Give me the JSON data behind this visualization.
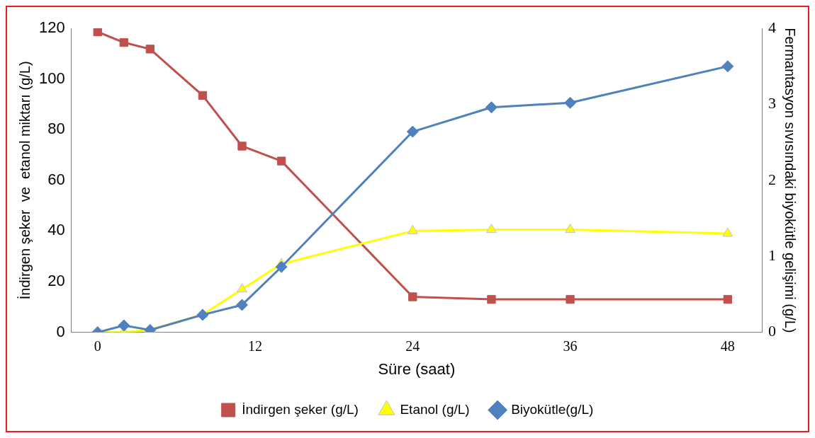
{
  "chart_data": {
    "type": "line",
    "xlabel": "Süre (saat)",
    "ylabel": "İndirgen şeker  ve  etanol miktarı (g/L)",
    "y2label": "Fermantasyon sıvısındaki biyokütle gelişimi (g/L)",
    "x": [
      0,
      2,
      4,
      8,
      11,
      14,
      24,
      30,
      36,
      48
    ],
    "series": [
      {
        "name": "İndirgen şeker (g/L)",
        "color": "#c0504d",
        "marker": "square",
        "values": [
          118.6,
          114.4,
          111.8,
          93.5,
          73.5,
          67.6,
          14,
          13,
          13,
          13
        ]
      },
      {
        "name": "Etanol (g/L)",
        "color": "#ffff00",
        "marker": "triangle",
        "values": [
          0,
          0,
          1,
          7,
          17,
          27,
          40,
          40.5,
          40.5,
          39
        ]
      },
      {
        "name": "Biyokütle(g/L)",
        "color": "#4f81bd",
        "marker": "diamond",
        "axis": "y2",
        "values": [
          0,
          0.09,
          0.03,
          0.23,
          0.36,
          0.86,
          2.64,
          2.96,
          3.02,
          3.5
        ]
      }
    ],
    "xlim": [
      -2,
      50.6
    ],
    "xticks": [
      0,
      12,
      24,
      36,
      48
    ],
    "ylim": [
      0,
      120
    ],
    "yticks": [
      0,
      20,
      40,
      60,
      80,
      100,
      120
    ],
    "y2lim": [
      0,
      4
    ],
    "y2ticks": [
      0,
      1,
      2,
      3,
      4
    ],
    "grid": false,
    "legend": "bottom",
    "line_style": "solid"
  }
}
